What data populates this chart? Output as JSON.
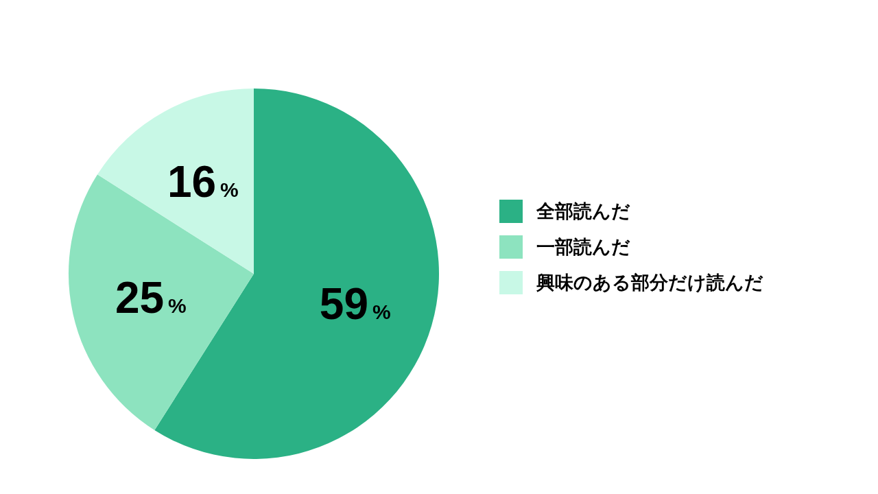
{
  "chart_data": {
    "type": "pie",
    "categories": [
      "全部読んだ",
      "一部読んだ",
      "興味のある部分だけ読んだ"
    ],
    "values": [
      59,
      25,
      16
    ],
    "colors": [
      "#2bb185",
      "#8de3bf",
      "#c8f8e6"
    ],
    "value_labels": [
      "59%",
      "25%",
      "16%"
    ],
    "legend": "right"
  }
}
